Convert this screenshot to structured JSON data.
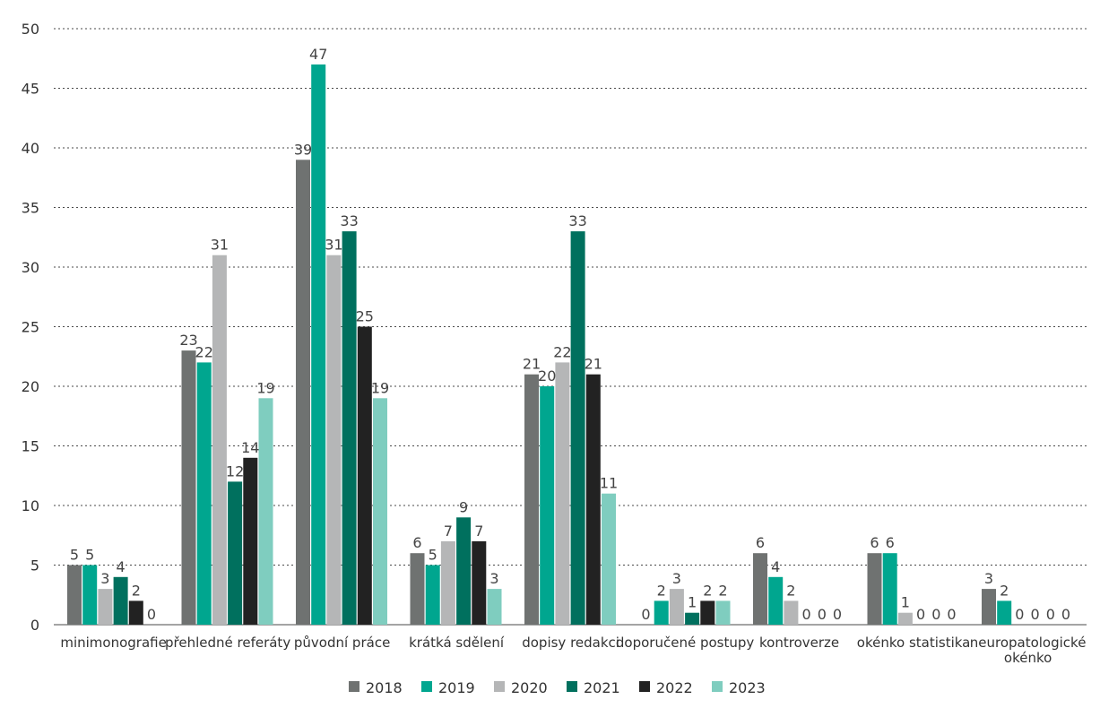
{
  "chart_data": {
    "type": "bar",
    "title": "",
    "xlabel": "",
    "ylabel": "",
    "ylim": [
      0,
      50
    ],
    "yticks": [
      0,
      5,
      10,
      15,
      20,
      25,
      30,
      35,
      40,
      45,
      50
    ],
    "grid": true,
    "legend_position": "bottom",
    "categories": [
      [
        "minimonografie"
      ],
      [
        "přehledné referáty"
      ],
      [
        "původní práce"
      ],
      [
        "krátká sdělení"
      ],
      [
        "dopisy redakci"
      ],
      [
        "doporučené postupy"
      ],
      [
        "kontroverze"
      ],
      [
        "okénko statistika"
      ],
      [
        "neuropatologické",
        "okénko"
      ]
    ],
    "series": [
      {
        "name": "2018",
        "color": "#6f7271",
        "values": [
          5,
          23,
          39,
          6,
          21,
          0,
          6,
          6,
          3
        ]
      },
      {
        "name": "2019",
        "color": "#00a68f",
        "values": [
          5,
          22,
          47,
          5,
          20,
          2,
          4,
          6,
          2
        ]
      },
      {
        "name": "2020",
        "color": "#b5b6b7",
        "values": [
          3,
          31,
          31,
          7,
          22,
          3,
          2,
          1,
          0
        ]
      },
      {
        "name": "2021",
        "color": "#00705e",
        "values": [
          4,
          12,
          33,
          9,
          33,
          1,
          0,
          0,
          0
        ]
      },
      {
        "name": "2022",
        "color": "#222222",
        "values": [
          2,
          14,
          25,
          7,
          21,
          2,
          0,
          0,
          0
        ]
      },
      {
        "name": "2023",
        "color": "#7fcdbf",
        "values": [
          0,
          19,
          19,
          3,
          11,
          2,
          0,
          0,
          0
        ]
      }
    ]
  }
}
